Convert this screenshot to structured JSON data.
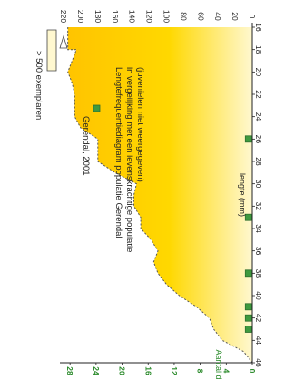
{
  "chart_data": {
    "type": "area",
    "title": "Lengtefrequentiediagram populatie Gerendal in vergelijking met een levenskrachtige populatie (juvenielen niet weergegeven)",
    "title_lines": [
      "Lengtefrequentiediagram populatie Gerendal",
      "in vergelijking met een levenskrachtige populatie",
      "(juvenielen niet weergegeven)"
    ],
    "xlabel": "lengte (mm)",
    "ylabel": "Aantal dieren",
    "x_ticks": [
      "16",
      "18",
      "20",
      "22",
      "24",
      "26",
      "28",
      "30",
      "32",
      "34",
      "36",
      "38",
      "40",
      "42",
      "44",
      "46"
    ],
    "y_ticks_left": [
      "0",
      "4",
      "8",
      "12",
      "16",
      "20",
      "24",
      "28"
    ],
    "y_ticks_right": [
      "0",
      "20",
      "40",
      "60",
      "80",
      "100",
      "120",
      "140",
      "160",
      "180",
      "200",
      "220"
    ],
    "xlim": [
      16,
      46
    ],
    "ylim_left": [
      0,
      29
    ],
    "ylim_right": [
      0,
      220
    ],
    "orientation": "rotated 90° clockwise",
    "series": [
      {
        "name": "",
        "axis": "right",
        "style": "dashed outline, yellow fill",
        "color": "#f5c400",
        "x": [
          16,
          18,
          18,
          19,
          20,
          21,
          22,
          23,
          24,
          25,
          26,
          27,
          28,
          29,
          30,
          31,
          32,
          33,
          34,
          35,
          36,
          37,
          38,
          39,
          40,
          41,
          42,
          43,
          44,
          45,
          46
        ],
        "y": [
          215,
          215,
          205,
          210,
          215,
          210,
          207,
          207,
          207,
          200,
          180,
          180,
          180,
          160,
          135,
          138,
          138,
          130,
          130,
          118,
          110,
          115,
          110,
          100,
          85,
          65,
          50,
          45,
          35,
          10,
          0
        ]
      },
      {
        "name": "Gerendal, 2001",
        "axis": "left",
        "style": "markers",
        "color": "#3f9a3f",
        "x": [
          26,
          33,
          38,
          41,
          42,
          43
        ],
        "y": [
          1,
          1,
          1,
          1,
          1,
          1
        ]
      }
    ],
    "annotation": "> 500 exemplaren",
    "grid": false,
    "legend_position": "top-left"
  }
}
